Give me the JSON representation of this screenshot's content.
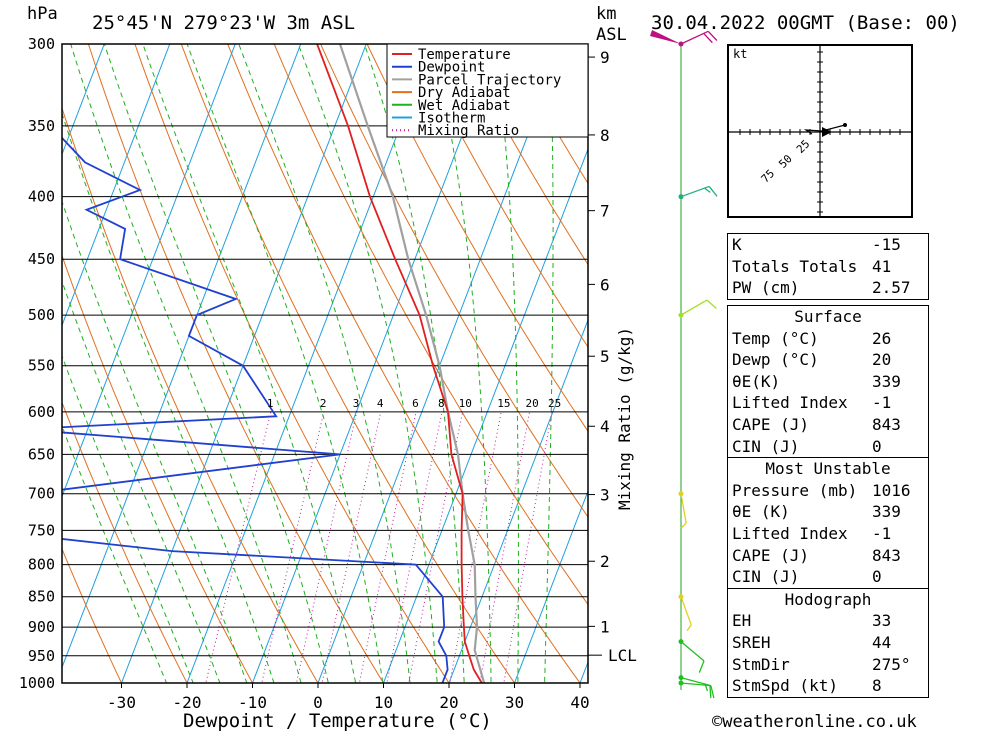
{
  "header": {
    "pressure_unit": "hPa",
    "location": "25°45'N  279°23'W  3m  ASL",
    "height_unit_top": "km",
    "height_unit_bottom": "ASL",
    "datetime": "30.04.2022  00GMT  (Base: 00)"
  },
  "axes": {
    "xlabel": "Dewpoint / Temperature (°C)",
    "mixing_label": "Mixing Ratio (g/kg)",
    "hodo_unit": "kt"
  },
  "legend": [
    {
      "label": "Temperature",
      "color": "#e02020"
    },
    {
      "label": "Dewpoint",
      "color": "#2040d0"
    },
    {
      "label": "Parcel Trajectory",
      "color": "#a0a0a0"
    },
    {
      "label": "Dry Adiabat",
      "color": "#e07020"
    },
    {
      "label": "Wet Adiabat",
      "color": "#20b020"
    },
    {
      "label": "Isotherm",
      "color": "#20a0e0"
    },
    {
      "label": "Mixing Ratio",
      "color": "#c020a0"
    }
  ],
  "chart_data": {
    "type": "line",
    "title": "Skew-T log-P diagram",
    "x_axis": {
      "label": "Dewpoint / Temperature (°C)",
      "ticks": [
        -30,
        -20,
        -10,
        0,
        10,
        20,
        30,
        40
      ],
      "range": [
        -40,
        40
      ]
    },
    "y_axis": {
      "label": "hPa",
      "scale": "log",
      "ticks": [
        300,
        350,
        400,
        450,
        500,
        550,
        600,
        650,
        700,
        750,
        800,
        850,
        900,
        950,
        1000
      ],
      "range": [
        1000,
        300
      ]
    },
    "height_ticks_km": [
      1,
      2,
      3,
      4,
      5,
      6,
      7,
      8,
      9
    ],
    "lcl_label": "LCL",
    "mixing_ratio_labels": [
      "1",
      "2",
      "3",
      "4",
      "6",
      "8",
      "10",
      "15",
      "20",
      "25"
    ],
    "series": [
      {
        "name": "Temperature",
        "color": "#e02020",
        "points": [
          [
            1012,
            26
          ],
          [
            1000,
            25
          ],
          [
            975,
            23
          ],
          [
            950,
            21.5
          ],
          [
            925,
            20
          ],
          [
            900,
            19
          ],
          [
            850,
            17
          ],
          [
            800,
            15
          ],
          [
            750,
            13
          ],
          [
            700,
            11
          ],
          [
            650,
            7
          ],
          [
            600,
            4
          ],
          [
            550,
            -1
          ],
          [
            500,
            -6
          ],
          [
            450,
            -13
          ],
          [
            400,
            -20.5
          ],
          [
            350,
            -28
          ],
          [
            300,
            -37.5
          ]
        ]
      },
      {
        "name": "Dewpoint",
        "color": "#2040d0",
        "points": [
          [
            1012,
            20
          ],
          [
            1000,
            19
          ],
          [
            975,
            19
          ],
          [
            950,
            18
          ],
          [
            925,
            16
          ],
          [
            900,
            16
          ],
          [
            850,
            14
          ],
          [
            800,
            8
          ],
          [
            780,
            -30
          ],
          [
            750,
            -60
          ],
          [
            700,
            -55
          ],
          [
            650,
            -10
          ],
          [
            620,
            -60
          ],
          [
            605,
            -22
          ],
          [
            550,
            -30
          ],
          [
            520,
            -40
          ],
          [
            500,
            -40
          ],
          [
            485,
            -35
          ],
          [
            450,
            -55
          ],
          [
            425,
            -56
          ],
          [
            410,
            -63
          ],
          [
            395,
            -56
          ],
          [
            375,
            -66
          ],
          [
            300,
            -90
          ]
        ]
      },
      {
        "name": "Parcel Trajectory",
        "color": "#a0a0a0",
        "points": [
          [
            1012,
            26
          ],
          [
            975,
            24
          ],
          [
            940,
            22
          ],
          [
            900,
            21
          ],
          [
            850,
            19
          ],
          [
            800,
            17
          ],
          [
            750,
            14
          ],
          [
            700,
            11
          ],
          [
            650,
            8
          ],
          [
            600,
            4
          ],
          [
            550,
            0
          ],
          [
            500,
            -5
          ],
          [
            450,
            -11
          ],
          [
            400,
            -17
          ],
          [
            350,
            -25
          ],
          [
            300,
            -34
          ]
        ]
      }
    ],
    "wind_barbs": [
      {
        "p": 1000,
        "speed_kt": 10,
        "dir_deg": 275
      },
      {
        "p": 990,
        "speed_kt": 15,
        "dir_deg": 285
      },
      {
        "p": 925,
        "speed_kt": 10,
        "dir_deg": 310
      },
      {
        "p": 850,
        "speed_kt": 5,
        "dir_deg": 340
      },
      {
        "p": 700,
        "speed_kt": 5,
        "dir_deg": 350
      },
      {
        "p": 500,
        "speed_kt": 10,
        "dir_deg": 240
      },
      {
        "p": 400,
        "speed_kt": 15,
        "dir_deg": 250
      },
      {
        "p": 300,
        "speed_kt": 20,
        "dir_deg": 245
      }
    ],
    "hodograph": {
      "ring_labels": [
        "25",
        "50",
        "75"
      ]
    }
  },
  "indices": {
    "top": [
      {
        "key": "K",
        "value": "-15"
      },
      {
        "key": "Totals Totals",
        "value": "41"
      },
      {
        "key": "PW (cm)",
        "value": "2.57"
      }
    ],
    "surface_title": "Surface",
    "surface": [
      {
        "key": "Temp (°C)",
        "value": "26"
      },
      {
        "key": "Dewp (°C)",
        "value": "20"
      },
      {
        "key": "θE(K)",
        "value": "339"
      },
      {
        "key": "Lifted Index",
        "value": "-1"
      },
      {
        "key": "CAPE (J)",
        "value": "843"
      },
      {
        "key": "CIN (J)",
        "value": "0"
      }
    ],
    "mu_title": "Most Unstable",
    "mu": [
      {
        "key": "Pressure (mb)",
        "value": "1016"
      },
      {
        "key": "θE (K)",
        "value": "339"
      },
      {
        "key": "Lifted Index",
        "value": "-1"
      },
      {
        "key": "CAPE (J)",
        "value": "843"
      },
      {
        "key": "CIN (J)",
        "value": "0"
      }
    ],
    "hodo_title": "Hodograph",
    "hodo": [
      {
        "key": "EH",
        "value": "33"
      },
      {
        "key": "SREH",
        "value": "44"
      },
      {
        "key": "StmDir",
        "value": "275°"
      },
      {
        "key": "StmSpd (kt)",
        "value": "8"
      }
    ]
  },
  "footer": {
    "site": "©weatheronline.co.uk"
  }
}
